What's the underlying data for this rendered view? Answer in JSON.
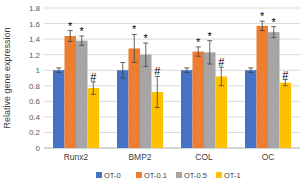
{
  "chart_data": {
    "type": "bar",
    "y_label": "Relative gene expression",
    "categories": [
      "Runx2",
      "BMP2",
      "COL",
      "OC"
    ],
    "series": [
      {
        "name": "OT-0",
        "color": "#4472c4",
        "values": [
          1.0,
          1.0,
          1.0,
          1.0
        ],
        "errors": [
          0.03,
          0.1,
          0.03,
          0.03
        ]
      },
      {
        "name": "OT-0.1",
        "color": "#ed7d31",
        "values": [
          1.44,
          1.28,
          1.24,
          1.57
        ],
        "errors": [
          0.07,
          0.18,
          0.06,
          0.06
        ],
        "annotations": [
          "*",
          "*",
          "*",
          "*"
        ]
      },
      {
        "name": "OT-0.5",
        "color": "#a5a5a5",
        "values": [
          1.38,
          1.2,
          1.23,
          1.49
        ],
        "errors": [
          0.06,
          0.15,
          0.15,
          0.07
        ],
        "annotations": [
          "*",
          "*",
          "*",
          "*"
        ]
      },
      {
        "name": "OT-1",
        "color": "#ffc000",
        "values": [
          0.77,
          0.72,
          0.92,
          0.84
        ],
        "errors": [
          0.08,
          0.2,
          0.12,
          0.04
        ],
        "annotations": [
          "#",
          "#",
          "#",
          "#"
        ]
      }
    ],
    "ylim": [
      0,
      1.8
    ],
    "yticks": [
      0,
      0.2,
      0.4,
      0.6,
      0.8,
      1,
      1.2,
      1.4,
      1.6,
      1.8
    ],
    "grid": true,
    "legend": "bottom"
  }
}
